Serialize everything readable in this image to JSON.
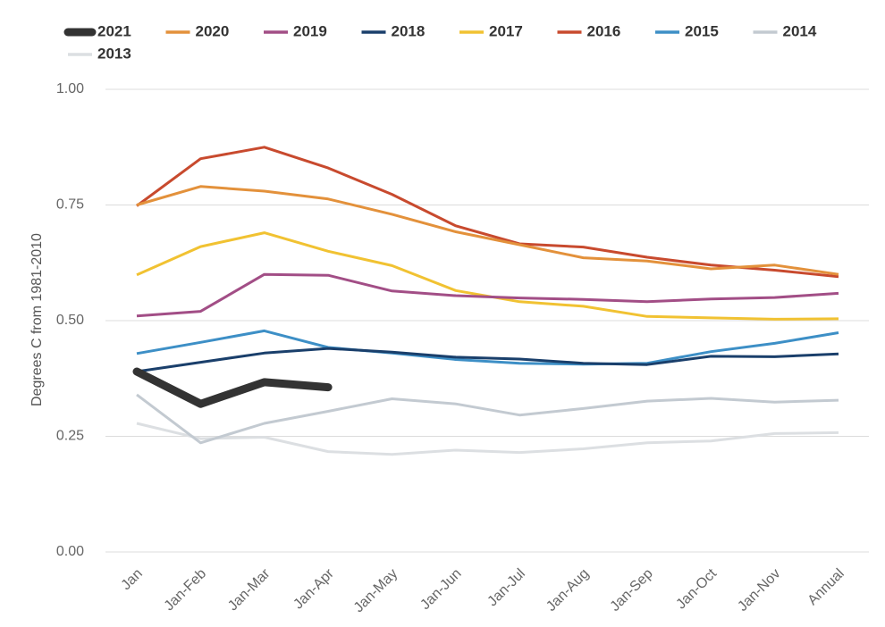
{
  "chart_data": {
    "type": "line",
    "title": "",
    "xlabel": "",
    "ylabel": "Degrees C from 1981-2010",
    "categories": [
      "Jan",
      "Jan-Feb",
      "Jan-Mar",
      "Jan-Apr",
      "Jan-May",
      "Jan-Jun",
      "Jan-Jul",
      "Jan-Aug",
      "Jan-Sep",
      "Jan-Oct",
      "Jan-Nov",
      "Annual"
    ],
    "ylim": [
      0,
      1
    ],
    "yticks": [
      "0.00",
      "0.25",
      "0.50",
      "0.75",
      "1.00"
    ],
    "grid": "horizontal",
    "legend_position": "top",
    "series": [
      {
        "name": "2013",
        "color": "#dcdfe2",
        "values": [
          0.278,
          0.245,
          0.248,
          0.217,
          0.211,
          0.22,
          0.215,
          0.223,
          0.236,
          0.24,
          0.256,
          0.258
        ]
      },
      {
        "name": "2014",
        "color": "#c3cad1",
        "values": [
          0.34,
          0.236,
          0.278,
          0.304,
          0.331,
          0.32,
          0.296,
          0.31,
          0.326,
          0.332,
          0.324,
          0.328
        ]
      },
      {
        "name": "2015",
        "color": "#3d8fc6",
        "values": [
          0.429,
          0.453,
          0.478,
          0.442,
          0.43,
          0.416,
          0.408,
          0.406,
          0.408,
          0.433,
          0.451,
          0.474
        ]
      },
      {
        "name": "2016",
        "color": "#c84a2e",
        "values": [
          0.748,
          0.85,
          0.875,
          0.83,
          0.773,
          0.705,
          0.666,
          0.659,
          0.637,
          0.62,
          0.609,
          0.595
        ]
      },
      {
        "name": "2017",
        "color": "#f1c232",
        "values": [
          0.599,
          0.66,
          0.69,
          0.65,
          0.619,
          0.565,
          0.541,
          0.531,
          0.509,
          0.506,
          0.503,
          0.504
        ]
      },
      {
        "name": "2018",
        "color": "#1a3f6b",
        "values": [
          0.39,
          0.41,
          0.43,
          0.44,
          0.432,
          0.421,
          0.417,
          0.408,
          0.405,
          0.423,
          0.422,
          0.428
        ]
      },
      {
        "name": "2019",
        "color": "#a24e86",
        "values": [
          0.51,
          0.52,
          0.6,
          0.598,
          0.564,
          0.554,
          0.549,
          0.546,
          0.541,
          0.547,
          0.55,
          0.559
        ]
      },
      {
        "name": "2020",
        "color": "#e3913b",
        "values": [
          0.75,
          0.79,
          0.78,
          0.763,
          0.73,
          0.692,
          0.664,
          0.636,
          0.629,
          0.612,
          0.62,
          0.6
        ]
      },
      {
        "name": "2021",
        "color": "#333333",
        "values": [
          0.39,
          0.32,
          0.367,
          0.356,
          null,
          null,
          null,
          null,
          null,
          null,
          null,
          null
        ]
      }
    ]
  },
  "legend": {
    "order": [
      "2021",
      "2020",
      "2019",
      "2018",
      "2017",
      "2016",
      "2015",
      "2014",
      "2013"
    ]
  }
}
